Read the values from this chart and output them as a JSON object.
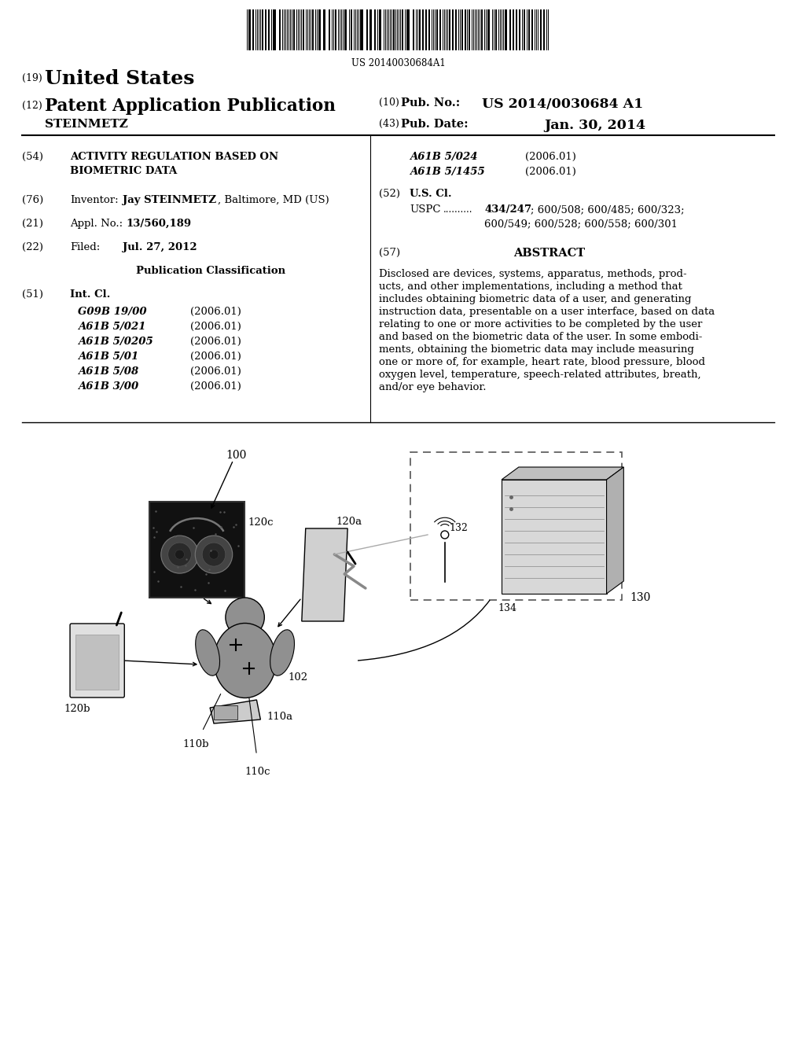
{
  "bg_color": "#ffffff",
  "barcode_text": "US 20140030684A1",
  "int_cl_left": [
    [
      "G09B 19/00",
      "(2006.01)"
    ],
    [
      "A61B 5/021",
      "(2006.01)"
    ],
    [
      "A61B 5/0205",
      "(2006.01)"
    ],
    [
      "A61B 5/01",
      "(2006.01)"
    ],
    [
      "A61B 5/08",
      "(2006.01)"
    ],
    [
      "A61B 3/00",
      "(2006.01)"
    ]
  ],
  "int_cl_right": [
    [
      "A61B 5/024",
      "(2006.01)"
    ],
    [
      "A61B 5/1455",
      "(2006.01)"
    ]
  ],
  "abstract_lines": [
    "Disclosed are devices, systems, apparatus, methods, prod-",
    "ucts, and other implementations, including a method that",
    "includes obtaining biometric data of a user, and generating",
    "instruction data, presentable on a user interface, based on data",
    "relating to one or more activities to be completed by the user",
    "and based on the biometric data of the user. In some embodi-",
    "ments, obtaining the biometric data may include measuring",
    "one or more of, for example, heart rate, blood pressure, blood",
    "oxygen level, temperature, speech-related attributes, breath,",
    "and/or eye behavior."
  ]
}
